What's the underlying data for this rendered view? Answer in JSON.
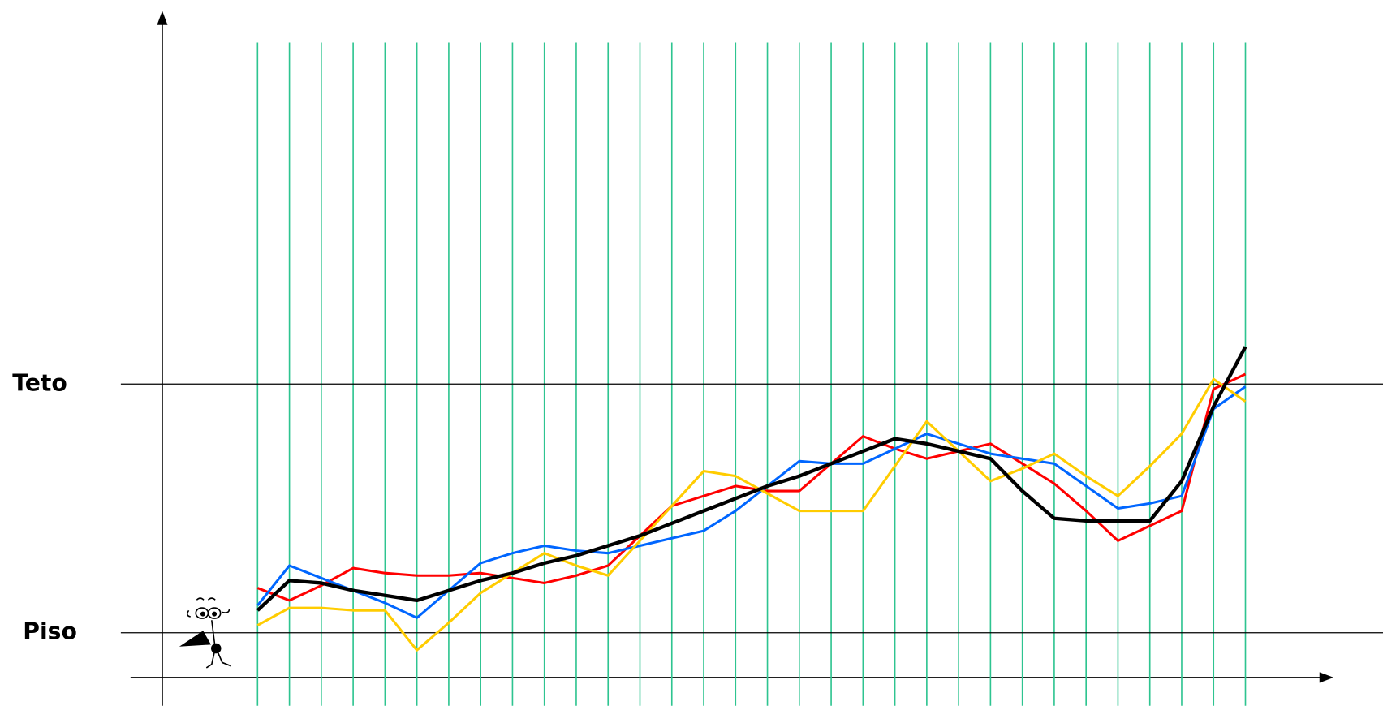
{
  "chart_data": {
    "type": "line",
    "categories": [
      null,
      null,
      null,
      null,
      null,
      null,
      null,
      null,
      null,
      null,
      null,
      null,
      null,
      null,
      null,
      null,
      null,
      null,
      null,
      null,
      null,
      null,
      null,
      null,
      null,
      null,
      null,
      null,
      null,
      null,
      null,
      null
    ],
    "series": [
      {
        "color": "#ff0000",
        "values": [
          18,
          13,
          19,
          26,
          24,
          23,
          23,
          24,
          22,
          20,
          23,
          27,
          39,
          51,
          55,
          59,
          57,
          57,
          68,
          79,
          74,
          70,
          73,
          76,
          68,
          60,
          49,
          37,
          43,
          49,
          98,
          104
        ]
      },
      {
        "color": "#0066ff",
        "values": [
          11,
          27,
          22,
          17,
          12,
          6,
          17,
          28,
          32,
          35,
          33,
          32,
          35,
          38,
          41,
          49,
          59,
          69,
          68,
          68,
          74,
          80,
          76,
          72,
          70,
          68,
          59,
          50,
          52,
          55,
          90,
          99
        ]
      },
      {
        "color": "#ffcc00",
        "values": [
          3,
          10,
          10,
          9,
          9,
          -7,
          4,
          16,
          24,
          32,
          27,
          23,
          37,
          51,
          65,
          63,
          56,
          49,
          49,
          49,
          67,
          85,
          73,
          61,
          66,
          72,
          63,
          55,
          67,
          80,
          102,
          93
        ]
      },
      {
        "color": "#000000",
        "values": [
          9,
          21,
          20,
          17,
          15,
          13,
          17,
          21,
          24,
          28,
          31,
          35,
          39,
          44,
          49,
          54,
          59,
          63,
          68,
          73,
          78,
          76,
          73,
          70,
          57,
          46,
          45,
          45,
          45,
          61,
          91,
          115
        ]
      }
    ],
    "ylim": [
      -18,
      249
    ],
    "reference_lines": [
      {
        "label": "Teto",
        "value": 100
      },
      {
        "label": "Piso",
        "value": 0
      }
    ],
    "grid": true,
    "grid_color": "#2ec490"
  }
}
